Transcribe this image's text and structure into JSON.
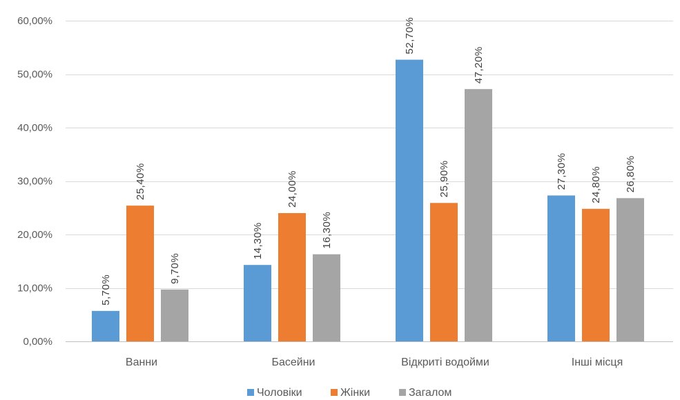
{
  "chart_data": {
    "type": "bar",
    "categories": [
      "Ванни",
      "Басейни",
      "Відкриті водойми",
      "Інші місця"
    ],
    "series": [
      {
        "name": "Чоловіки",
        "color": "#5b9bd5",
        "values": [
          5.7,
          14.3,
          52.7,
          27.3
        ],
        "labels": [
          "5,70%",
          "14,30%",
          "52,70%",
          "27,30%"
        ]
      },
      {
        "name": "Жінки",
        "color": "#ed7d31",
        "values": [
          25.4,
          24.0,
          25.9,
          24.8
        ],
        "labels": [
          "25,40%",
          "24,00%",
          "25,90%",
          "24,80%"
        ]
      },
      {
        "name": "Загалом",
        "color": "#a5a5a5",
        "values": [
          9.7,
          16.3,
          47.2,
          26.8
        ],
        "labels": [
          "9,70%",
          "16,30%",
          "47,20%",
          "26,80%"
        ]
      }
    ],
    "ylim": [
      0,
      60
    ],
    "yticks": [
      0,
      10,
      20,
      30,
      40,
      50,
      60
    ],
    "ytick_labels": [
      "0,00%",
      "10,00%",
      "20,00%",
      "30,00%",
      "40,00%",
      "50,00%",
      "60,00%"
    ],
    "grid": true,
    "legend_position": "bottom",
    "title": "",
    "xlabel": "",
    "ylabel": ""
  }
}
